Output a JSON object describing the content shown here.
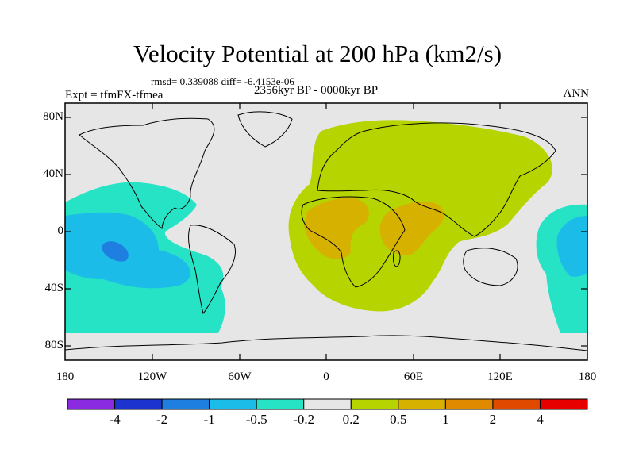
{
  "title": "Velocity Potential at 200 hPa (km2/s)",
  "stats": "rmsd= 0.339088 diff= -6.4153e-06",
  "experiment": "Expt = tfmFX-tfmea",
  "period": "2356kyr BP - 0000kyr BP",
  "season": "ANN",
  "map": {
    "lat_labels": [
      "80N",
      "40N",
      "0",
      "40S",
      "80S"
    ],
    "lon_labels": [
      "180",
      "120W",
      "60W",
      "0",
      "60E",
      "120E",
      "180"
    ]
  },
  "colorbar": {
    "colors": [
      "#8a2be2",
      "#1c33d0",
      "#1f7fe0",
      "#1bbde8",
      "#26e3c6",
      "#e6e6e6",
      "#b5d400",
      "#d7b100",
      "#e08a00",
      "#e04a00",
      "#e60000"
    ],
    "labels": [
      "-4",
      "-2",
      "-1",
      "-0.5",
      "-0.2",
      "0.2",
      "0.5",
      "1",
      "2",
      "4"
    ]
  },
  "colors": {
    "background": "#e6e6e6",
    "neg_weak": "#26e3c6",
    "neg_mid": "#1bbde8",
    "neg_strong": "#1f7fe0",
    "pos_weak": "#b5d400",
    "pos_mid": "#d7b100",
    "land": "#000000"
  }
}
